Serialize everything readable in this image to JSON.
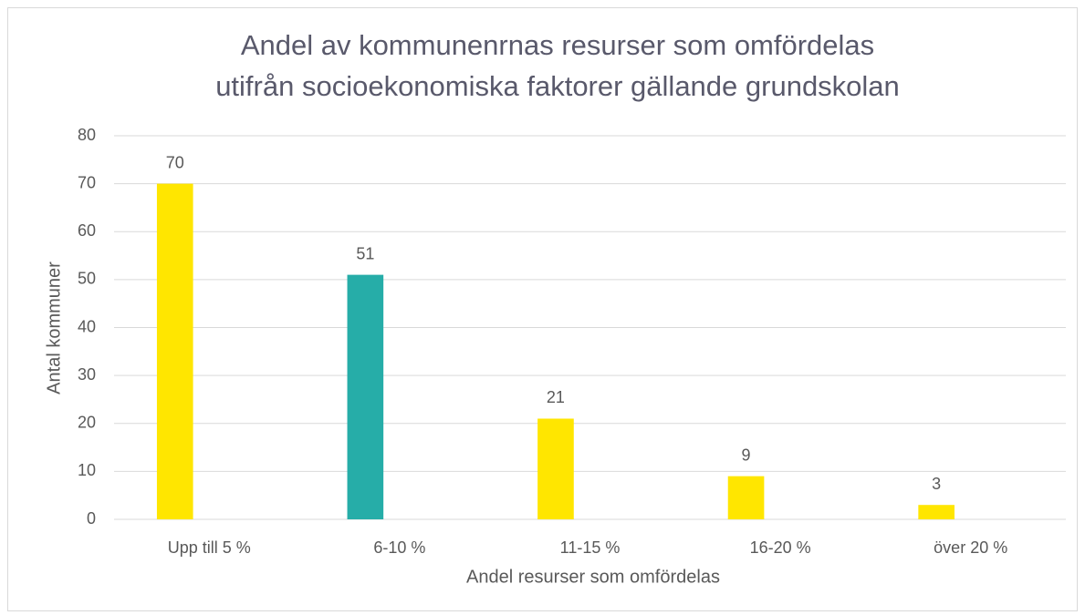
{
  "chart_data": {
    "type": "bar",
    "title": [
      "Andel av kommunenrnas resurser som omfördelas",
      "utifrån socioekonomiska faktorer gällande grundskolan"
    ],
    "x_label": "Andel resurser som omfördelas",
    "y_label": "Antal kommuner",
    "categories": [
      "Upp till 5 %",
      "6-10 %",
      "11-15 %",
      "16-20 %",
      "över 20 %"
    ],
    "values": [
      70,
      51,
      21,
      9,
      3
    ],
    "colors": [
      "#ffe600",
      "#26ada8",
      "#ffe600",
      "#ffe600",
      "#ffe600"
    ],
    "ylim": [
      0,
      80
    ],
    "yticks": [
      0,
      10,
      20,
      30,
      40,
      50,
      60,
      70,
      80
    ],
    "grid": true
  }
}
